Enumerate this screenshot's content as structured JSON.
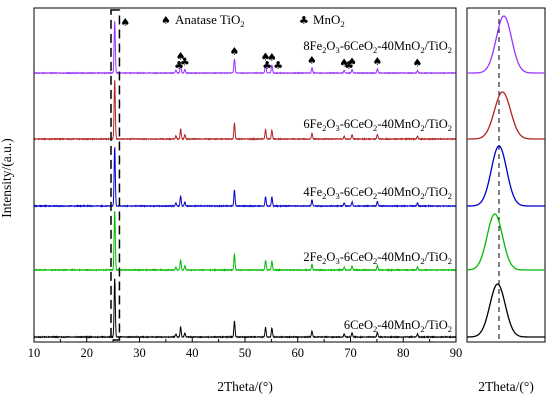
{
  "chart_data": [
    {
      "type": "line",
      "panel": "main",
      "xlabel": "2Theta/(°)",
      "ylabel": "Intensity/(a.u.)",
      "xlim": [
        10,
        90
      ],
      "xticks": [
        10,
        20,
        30,
        40,
        50,
        60,
        70,
        80,
        90
      ],
      "legend": {
        "anatase": {
          "symbol": "♠",
          "text": "Anatase TiO",
          "sub": "2"
        },
        "mno2": {
          "symbol": "♣",
          "text": "MnO",
          "sub": "2"
        }
      },
      "peak_markers": {
        "anatase": [
          25.3,
          37.8,
          48.0,
          53.9,
          55.1,
          62.7,
          68.8,
          70.3,
          75.1,
          82.7
        ],
        "mno2": [
          37.5,
          38.6,
          54.2,
          56.3,
          69.7
        ]
      },
      "peaks": [
        {
          "x": 25.3,
          "y": 100
        },
        {
          "x": 36.9,
          "y": 5
        },
        {
          "x": 37.8,
          "y": 17
        },
        {
          "x": 38.6,
          "y": 7
        },
        {
          "x": 48.0,
          "y": 27
        },
        {
          "x": 53.9,
          "y": 16
        },
        {
          "x": 55.1,
          "y": 15
        },
        {
          "x": 62.7,
          "y": 10
        },
        {
          "x": 68.8,
          "y": 5
        },
        {
          "x": 70.3,
          "y": 7
        },
        {
          "x": 75.1,
          "y": 8
        },
        {
          "x": 82.7,
          "y": 5
        }
      ],
      "series": [
        {
          "name": "8Fe2O3-6CeO2-40MnO2/TiO2",
          "label": {
            "a": "8Fe",
            "b": "2",
            "c": "O",
            "d": "3",
            "e": "-6CeO",
            "f": "2",
            "g": "-40MnO",
            "h": "2",
            "i": "/TiO",
            "j": "2"
          },
          "color": "#9933ff",
          "peak_scale": 0.55
        },
        {
          "name": "6Fe2O3-6CeO2-40MnO2/TiO2",
          "label": {
            "a": "6Fe",
            "b": "2",
            "c": "O",
            "d": "3",
            "e": "-6CeO",
            "f": "2",
            "g": "-40MnO",
            "h": "2",
            "i": "/TiO",
            "j": "2"
          },
          "color": "#b22222",
          "peak_scale": 0.62
        },
        {
          "name": "4Fe2O3-6CeO2-40MnO2/TiO2",
          "label": {
            "a": "4Fe",
            "b": "2",
            "c": "O",
            "d": "3",
            "e": "-6CeO",
            "f": "2",
            "g": "-40MnO",
            "h": "2",
            "i": "/TiO",
            "j": "2"
          },
          "color": "#0000cc",
          "peak_scale": 0.62
        },
        {
          "name": "2Fe2O3-6CeO2-40MnO2/TiO2",
          "label": {
            "a": "2Fe",
            "b": "2",
            "c": "O",
            "d": "3",
            "e": "-6CeO",
            "f": "2",
            "g": "-40MnO",
            "h": "2",
            "i": "/TiO",
            "j": "2"
          },
          "color": "#00bb00",
          "peak_scale": 0.62
        },
        {
          "name": "6CeO2-40MnO2/TiO2",
          "label": {
            "a": "6CeO",
            "b": "2",
            "c": "",
            "d": "",
            "e": "-40MnO",
            "f": "2",
            "g": "/TiO",
            "h": "2",
            "i": "",
            "j": ""
          },
          "color": "#000000",
          "peak_scale": 0.62
        }
      ],
      "highlight_box_x": [
        24.6,
        26.2
      ]
    },
    {
      "type": "line",
      "panel": "zoom",
      "xlabel": "2Theta/(°)",
      "dashed_reference": true,
      "series": [
        {
          "color": "#9933ff",
          "shift": 0.35,
          "width": 1.0
        },
        {
          "color": "#b22222",
          "shift": 0.25,
          "width": 1.05
        },
        {
          "color": "#0000cc",
          "shift": 0.0,
          "width": 1.0
        },
        {
          "color": "#00bb00",
          "shift": -0.3,
          "width": 1.0
        },
        {
          "color": "#000000",
          "shift": -0.1,
          "width": 1.0
        }
      ]
    }
  ]
}
